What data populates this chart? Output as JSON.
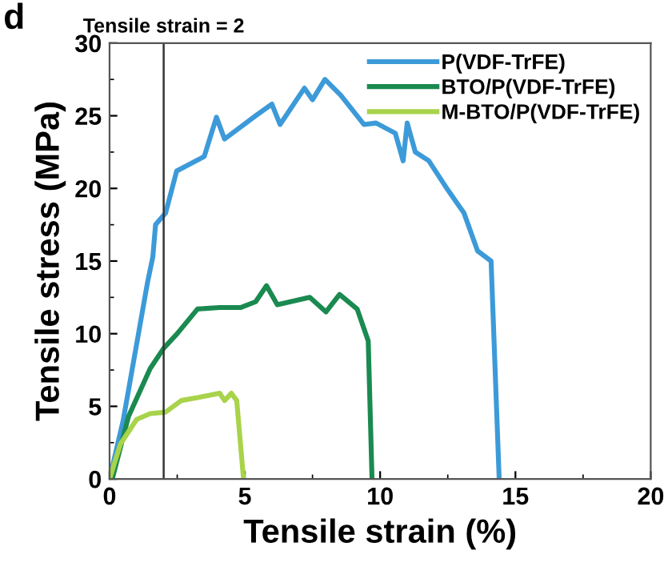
{
  "chart_data": {
    "type": "line",
    "xlabel": "Tensile strain (%)",
    "ylabel": "Tensile stress (MPa)",
    "xlim": [
      0,
      20
    ],
    "xticks": [
      0,
      5,
      10,
      15,
      20
    ],
    "ylim": [
      0,
      30
    ],
    "yticks": [
      0,
      5,
      10,
      15,
      20,
      25,
      30
    ],
    "grid": false,
    "legend": "top right",
    "marker": "none",
    "line_style": "solid",
    "ref_lines": [
      {
        "axis": "x",
        "value": 2,
        "label": "Tensile strain = 2",
        "color": "#333333"
      }
    ],
    "annotations": [
      "d"
    ],
    "series": [
      {
        "name": "P(VDF-TrFE)",
        "color": "#3d9ad9",
        "x": [
          0,
          0.5,
          1.4,
          1.6,
          1.7,
          2.07,
          2.48,
          3.5,
          3.95,
          4.25,
          5.4,
          6.0,
          6.3,
          7.2,
          7.5,
          7.96,
          8.55,
          9.4,
          9.85,
          10.56,
          10.85,
          11.0,
          11.3,
          11.8,
          12.5,
          13.1,
          13.6,
          14.1,
          14.4
        ],
        "values": [
          0,
          4,
          13.5,
          15.3,
          17.5,
          18.3,
          21.2,
          22.2,
          24.9,
          23.4,
          25,
          25.8,
          24.4,
          26.9,
          26.1,
          27.5,
          26.4,
          24.4,
          24.5,
          23.8,
          21.9,
          24.5,
          22.5,
          21.9,
          19.9,
          18.3,
          15.7,
          15.0,
          0
        ]
      },
      {
        "name": "BTO/P(VDF-TrFE)",
        "color": "#1a8a50",
        "x": [
          0.1,
          0.7,
          1.5,
          2.0,
          2.5,
          3.25,
          4.07,
          4.84,
          5.4,
          5.8,
          6.2,
          7.4,
          8.0,
          8.5,
          9.15,
          9.56,
          9.7
        ],
        "values": [
          0,
          4.3,
          7.6,
          9.0,
          10.0,
          11.7,
          11.8,
          11.8,
          12.2,
          13.3,
          12.0,
          12.5,
          11.5,
          12.7,
          11.7,
          9.5,
          0
        ]
      },
      {
        "name": "M-BTO/P(VDF-TrFE)",
        "color": "#a8d34a",
        "x": [
          0,
          0.4,
          1.0,
          1.5,
          2.07,
          2.65,
          3.25,
          4.07,
          4.25,
          4.5,
          4.7,
          4.95
        ],
        "values": [
          0,
          2.4,
          4.1,
          4.5,
          4.6,
          5.4,
          5.6,
          5.9,
          5.4,
          5.9,
          5.4,
          0
        ]
      }
    ]
  }
}
